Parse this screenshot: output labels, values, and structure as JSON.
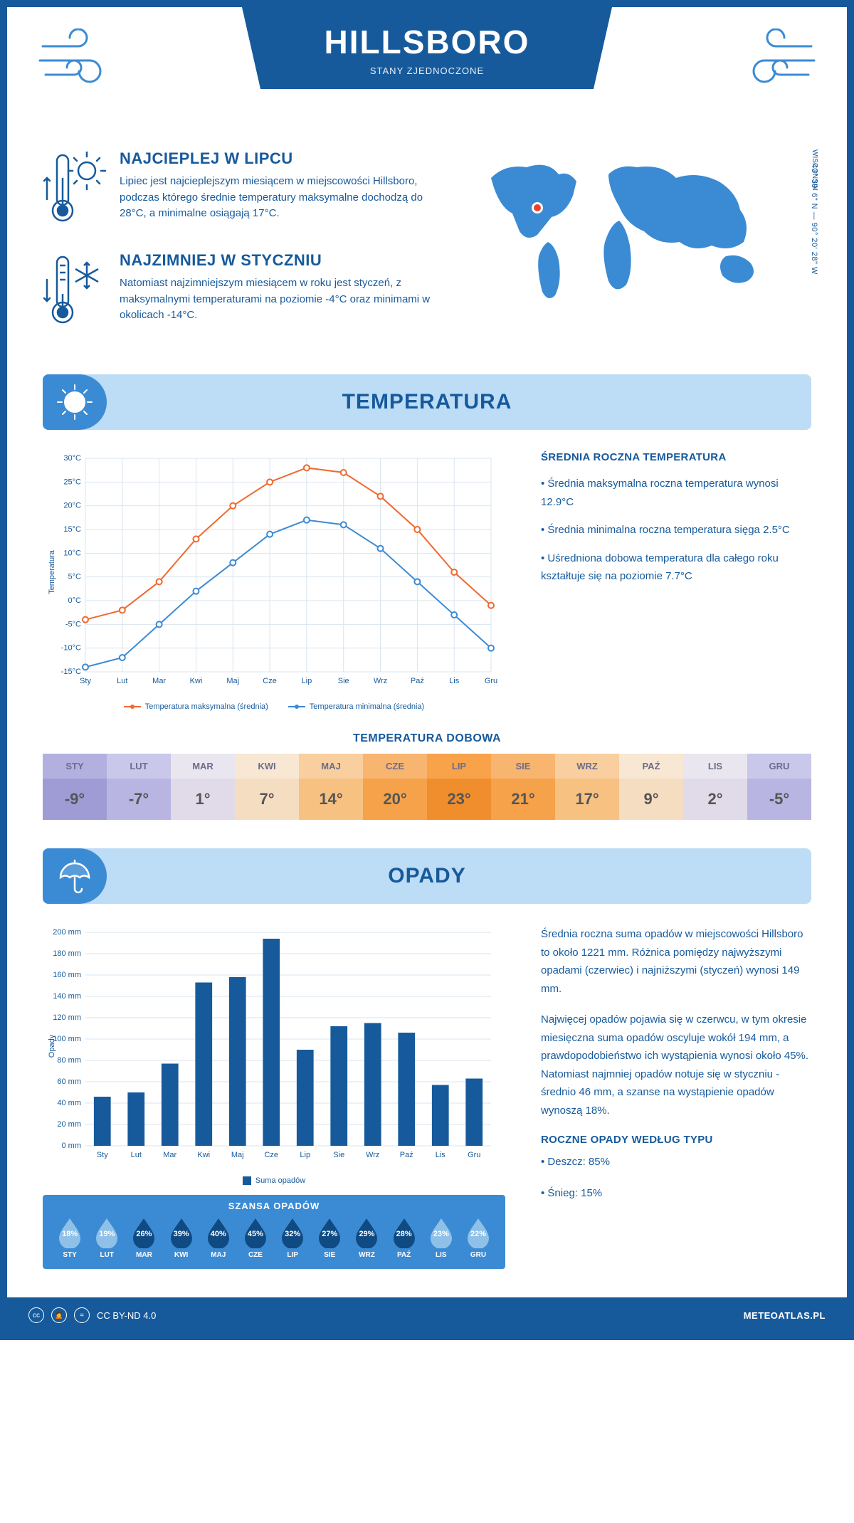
{
  "header": {
    "city": "HILLSBORO",
    "country": "STANY ZJEDNOCZONE",
    "coords": "43° 39' 6\" N — 90° 20' 28\" W",
    "region": "WISCONSIN"
  },
  "facts": {
    "warm": {
      "title": "NAJCIEPLEJ W LIPCU",
      "body": "Lipiec jest najcieplejszym miesiącem w miejscowości Hillsboro, podczas którego średnie temperatury maksymalne dochodzą do 28°C, a minimalne osiągają 17°C."
    },
    "cold": {
      "title": "NAJZIMNIEJ W STYCZNIU",
      "body": "Natomiast najzimniejszym miesiącem w roku jest styczeń, z maksymalnymi temperaturami na poziomie -4°C oraz minimami w okolicach -14°C."
    }
  },
  "section_temp_title": "TEMPERATURA",
  "section_precip_title": "OPADY",
  "months": [
    "Sty",
    "Lut",
    "Mar",
    "Kwi",
    "Maj",
    "Cze",
    "Lip",
    "Sie",
    "Wrz",
    "Paź",
    "Lis",
    "Gru"
  ],
  "months_upper": [
    "STY",
    "LUT",
    "MAR",
    "KWI",
    "MAJ",
    "CZE",
    "LIP",
    "SIE",
    "WRZ",
    "PAŹ",
    "LIS",
    "GRU"
  ],
  "temp_chart": {
    "type": "line",
    "ylabel": "Temperatura",
    "ylim": [
      -15,
      30
    ],
    "ytick_step": 5,
    "yticks_suffix": "°C",
    "series": {
      "max": {
        "label": "Temperatura maksymalna (średnia)",
        "color": "#f0692f",
        "values": [
          -4,
          -2,
          4,
          13,
          20,
          25,
          28,
          27,
          22,
          15,
          6,
          -1
        ]
      },
      "min": {
        "label": "Temperatura minimalna (średnia)",
        "color": "#3b8bd4",
        "values": [
          -14,
          -12,
          -5,
          2,
          8,
          14,
          17,
          16,
          11,
          4,
          -3,
          -10
        ]
      }
    },
    "grid_color": "#d9e4ef",
    "bg": "#ffffff",
    "axis_font_size": 10,
    "line_width": 2,
    "marker_size": 4
  },
  "temp_side": {
    "heading": "ŚREDNIA ROCZNA TEMPERATURA",
    "b1": "• Średnia maksymalna roczna temperatura wynosi 12.9°C",
    "b2": "• Średnia minimalna roczna temperatura sięga 2.5°C",
    "b3": "• Uśredniona dobowa temperatura dla całego roku kształtuje się na poziomie 7.7°C"
  },
  "daily_temp": {
    "title": "TEMPERATURA DOBOWA",
    "values": [
      -9,
      -7,
      1,
      7,
      14,
      20,
      23,
      21,
      17,
      9,
      2,
      -5
    ],
    "header_colors": [
      "#b3b0e0",
      "#c9c7ea",
      "#eae6ef",
      "#f8e7d3",
      "#f9cf9f",
      "#f8b570",
      "#f8a24a",
      "#f8b570",
      "#f9cf9f",
      "#f8e7d3",
      "#eae6ef",
      "#c9c7ea"
    ],
    "value_colors": [
      "#9f9bd5",
      "#b8b5e2",
      "#e0dae9",
      "#f5ddc2",
      "#f7c182",
      "#f5a24a",
      "#f08e2d",
      "#f5a24a",
      "#f7c182",
      "#f5ddc2",
      "#e0dae9",
      "#b8b5e2"
    ],
    "text_color_header": "#6c6c8c",
    "text_color_value": "#555"
  },
  "precip_chart": {
    "type": "bar",
    "ylabel": "Opady",
    "ylim": [
      0,
      200
    ],
    "ytick_step": 20,
    "yticks_suffix": " mm",
    "values": [
      46,
      50,
      77,
      153,
      158,
      194,
      90,
      112,
      115,
      106,
      57,
      63
    ],
    "bar_color": "#165a9c",
    "grid_color": "#d9e4ef",
    "bg": "#ffffff",
    "legend_label": "Suma opadów",
    "bar_width": 0.5,
    "axis_font_size": 10
  },
  "precip_text": {
    "p1": "Średnia roczna suma opadów w miejscowości Hillsboro to około 1221 mm. Różnica pomiędzy najwyższymi opadami (czerwiec) i najniższymi (styczeń) wynosi 149 mm.",
    "p2": "Najwięcej opadów pojawia się w czerwcu, w tym okresie miesięczna suma opadów oscyluje wokół 194 mm, a prawdopodobieństwo ich wystąpienia wynosi około 45%. Natomiast najmniej opadów notuje się w styczniu - średnio 46 mm, a szanse na wystąpienie opadów wynoszą 18%.",
    "type_heading": "ROCZNE OPADY WEDŁUG TYPU",
    "type_rain": "• Deszcz: 85%",
    "type_snow": "• Śnieg: 15%"
  },
  "chance": {
    "title": "SZANSA OPADÓW",
    "values": [
      18,
      19,
      26,
      39,
      40,
      45,
      32,
      27,
      29,
      28,
      23,
      22
    ],
    "light_color": "#8fc1e8",
    "dark_color": "#104a82",
    "threshold": 25
  },
  "footer": {
    "license": "CC BY-ND 4.0",
    "brand": "METEOATLAS.PL"
  },
  "colors": {
    "primary": "#165a9c",
    "light_blue": "#bddcf5",
    "mid_blue": "#3b8bd4",
    "map_fill": "#3b8bd4",
    "marker": "#e8432e"
  }
}
